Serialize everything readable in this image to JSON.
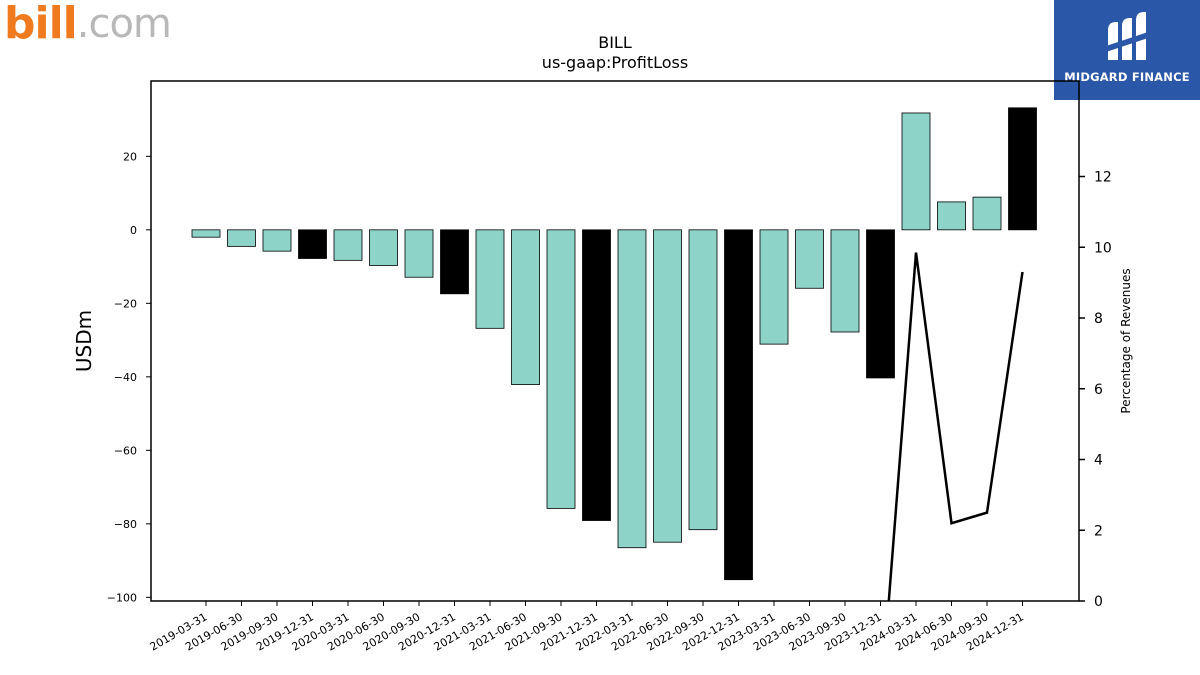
{
  "logos": {
    "left_brand_primary": "bill",
    "left_brand_secondary": ".com",
    "right_brand": "MIDGARD FINANCE"
  },
  "colors": {
    "bar_regular": "#8dd3c7",
    "bar_q4": "#000000",
    "line": "#000000",
    "brand_orange": "#f07b1e",
    "brand_blue": "#2a57a8"
  },
  "chart_data": {
    "type": "bar",
    "title": "BILL",
    "subtitle": "us-gaap:ProfitLoss",
    "ylabel": "USDm",
    "y2label": "Percentage of Revenues",
    "ylim": [
      -101,
      40.5
    ],
    "y2lim": [
      0,
      14.7
    ],
    "yticks": [
      20,
      0,
      -20,
      -40,
      -60,
      -80,
      -100
    ],
    "y2ticks": [
      0,
      2,
      4,
      6,
      8,
      10,
      12
    ],
    "categories": [
      "2019-03-31",
      "2019-06-30",
      "2019-09-30",
      "2019-12-31",
      "2020-03-31",
      "2020-06-30",
      "2020-09-30",
      "2020-12-31",
      "2021-03-31",
      "2021-06-30",
      "2021-09-30",
      "2021-12-31",
      "2022-03-31",
      "2022-06-30",
      "2022-09-30",
      "2022-12-31",
      "2023-03-31",
      "2023-06-30",
      "2023-09-30",
      "2023-12-31",
      "2024-03-31",
      "2024-06-30",
      "2024-09-30",
      "2024-12-31"
    ],
    "values": [
      -2.0,
      -4.5,
      -5.8,
      -7.8,
      -8.3,
      -9.7,
      -12.9,
      -17.4,
      -26.8,
      -42.1,
      -75.8,
      -79.1,
      -86.5,
      -85.0,
      -81.6,
      -95.2,
      -31.1,
      -15.9,
      -27.8,
      -40.3,
      31.8,
      7.6,
      8.9,
      33.2
    ],
    "q4_highlight": [
      false,
      false,
      false,
      true,
      false,
      false,
      false,
      true,
      false,
      false,
      false,
      true,
      false,
      false,
      false,
      true,
      false,
      false,
      false,
      true,
      false,
      false,
      false,
      true
    ],
    "series": [
      {
        "values": [
          null,
          null,
          null,
          null,
          null,
          null,
          null,
          null,
          null,
          null,
          null,
          null,
          null,
          null,
          null,
          null,
          null,
          null,
          null,
          -3.0,
          9.85,
          2.2,
          2.5,
          9.3
        ]
      }
    ]
  }
}
